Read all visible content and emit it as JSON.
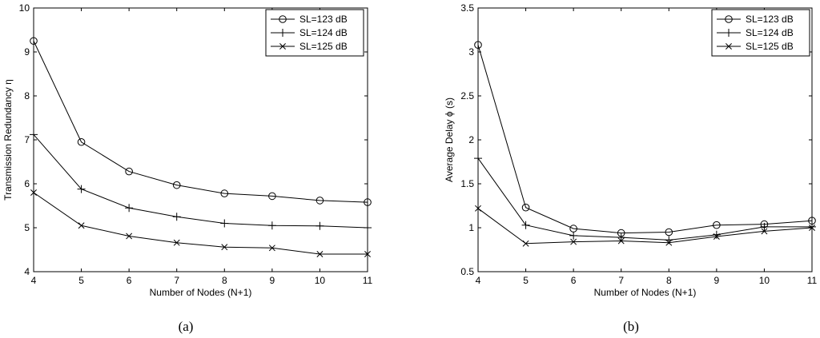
{
  "chart_data": [
    {
      "type": "line",
      "panel_label": "(a)",
      "xlabel": "Number of Nodes (N+1)",
      "ylabel": "Transmission Redundancy η",
      "xlim": [
        4,
        11
      ],
      "ylim": [
        4,
        10
      ],
      "xticks": [
        4,
        5,
        6,
        7,
        8,
        9,
        10,
        11
      ],
      "yticks": [
        4,
        5,
        6,
        7,
        8,
        9,
        10
      ],
      "grid": false,
      "legend_position": "top-right",
      "x": [
        4,
        5,
        6,
        7,
        8,
        9,
        10,
        11
      ],
      "series": [
        {
          "name": "SL=123 dB",
          "marker": "circle",
          "values": [
            9.25,
            6.95,
            6.28,
            5.97,
            5.78,
            5.72,
            5.62,
            5.58
          ]
        },
        {
          "name": "SL=124 dB",
          "marker": "plus",
          "values": [
            7.12,
            5.88,
            5.45,
            5.25,
            5.1,
            5.05,
            5.04,
            5.0
          ]
        },
        {
          "name": "SL=125 dB",
          "marker": "x",
          "values": [
            5.8,
            5.05,
            4.81,
            4.66,
            4.56,
            4.54,
            4.4,
            4.4
          ]
        }
      ]
    },
    {
      "type": "line",
      "panel_label": "(b)",
      "xlabel": "Number of Nodes (N+1)",
      "ylabel": "Average Delay ϕ (s)",
      "xlim": [
        4,
        11
      ],
      "ylim": [
        0.5,
        3.5
      ],
      "xticks": [
        4,
        5,
        6,
        7,
        8,
        9,
        10,
        11
      ],
      "yticks": [
        0.5,
        1,
        1.5,
        2,
        2.5,
        3,
        3.5
      ],
      "grid": false,
      "legend_position": "top-right",
      "x": [
        4,
        5,
        6,
        7,
        8,
        9,
        10,
        11
      ],
      "series": [
        {
          "name": "SL=123 dB",
          "marker": "circle",
          "values": [
            3.08,
            1.23,
            0.99,
            0.94,
            0.95,
            1.03,
            1.04,
            1.08
          ]
        },
        {
          "name": "SL=124 dB",
          "marker": "plus",
          "values": [
            1.79,
            1.03,
            0.91,
            0.89,
            0.86,
            0.92,
            1.01,
            1.01
          ]
        },
        {
          "name": "SL=125 dB",
          "marker": "x",
          "values": [
            1.22,
            0.82,
            0.84,
            0.85,
            0.83,
            0.9,
            0.96,
            1.0
          ]
        }
      ]
    }
  ]
}
